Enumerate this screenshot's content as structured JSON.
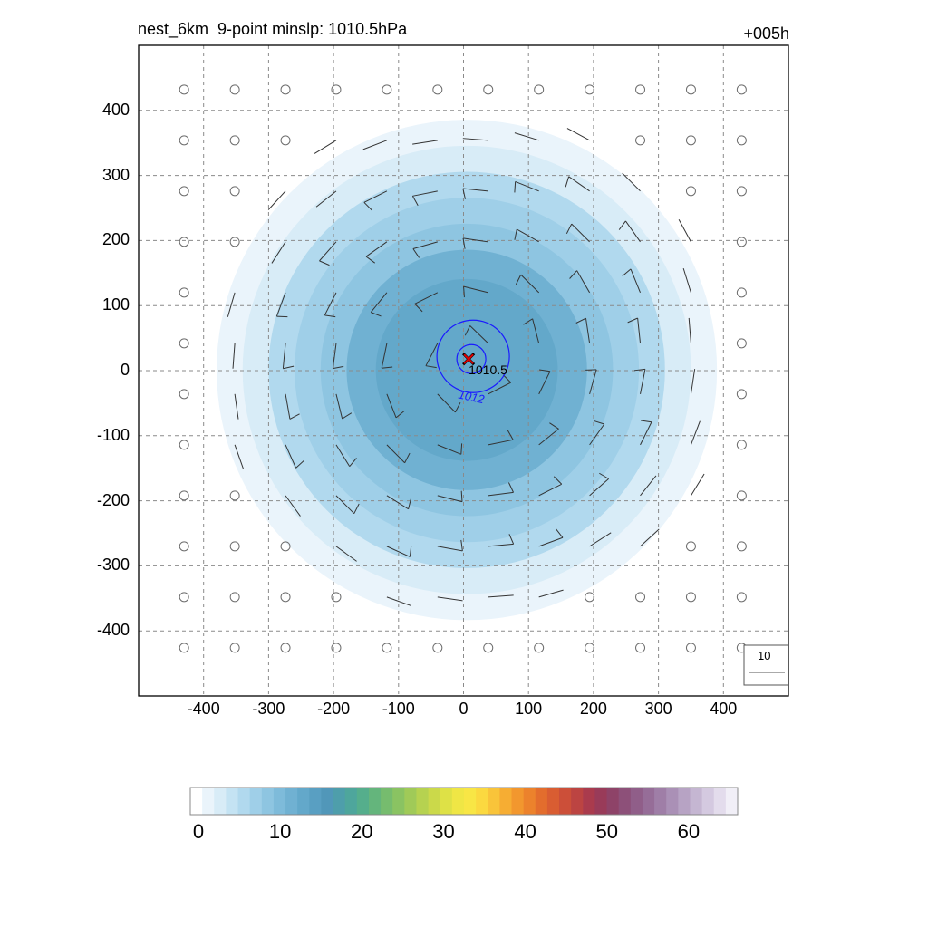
{
  "chart_data": {
    "type": "contour",
    "title_left": "nest_6km  9-point minslp: 1010.5hPa",
    "title_right": "+005h",
    "x_ticks": [
      -400,
      -300,
      -200,
      -100,
      0,
      100,
      200,
      300,
      400
    ],
    "y_ticks": [
      400,
      300,
      200,
      100,
      0,
      -100,
      -200,
      -300,
      -400
    ],
    "xlim": [
      -500,
      500
    ],
    "ylim": [
      -500,
      500
    ],
    "grid": true,
    "center": {
      "x": 12,
      "y": 15,
      "minslp_label": "1010.5"
    },
    "pressure_contours": [
      {
        "label": "1012"
      }
    ],
    "wind_reference_label": "10",
    "colorbar": {
      "ticks": [
        0,
        10,
        20,
        30,
        40,
        50,
        60
      ],
      "range": [
        0,
        66
      ],
      "colors": [
        "#ffffff",
        "#eaf4fb",
        "#d8ecf7",
        "#c4e3f3",
        "#b1d9ee",
        "#9fcfe8",
        "#8ec5e1",
        "#7ebbda",
        "#70b1d2",
        "#63a8ca",
        "#599fc2",
        "#5197b9",
        "#4e9eab",
        "#4ea69c",
        "#55ae8c",
        "#64b57c",
        "#76bc6e",
        "#8ac362",
        "#a0ca58",
        "#b6d250",
        "#cbd94a",
        "#dee146",
        "#efe645",
        "#f8e645",
        "#fbd940",
        "#f9c43a",
        "#f6ad33",
        "#f2972e",
        "#ec822c",
        "#e36d2d",
        "#d95d32",
        "#cc4f39",
        "#bc4442",
        "#aa3b4d",
        "#993b59",
        "#8e4368",
        "#8d5079",
        "#905e89",
        "#966d98",
        "#9f7ea7",
        "#aa90b6",
        "#b7a3c4",
        "#c5b6d2",
        "#d4c9e0",
        "#e3dcec",
        "#f1eff7"
      ]
    },
    "wind_shading": [
      {
        "radius": 385,
        "speed": 2
      },
      {
        "radius": 345,
        "speed": 4
      },
      {
        "radius": 305,
        "speed": 6
      },
      {
        "radius": 265,
        "speed": 8
      },
      {
        "radius": 225,
        "speed": 10
      },
      {
        "radius": 185,
        "speed": 12
      },
      {
        "radius": 140,
        "speed": 14
      }
    ]
  }
}
